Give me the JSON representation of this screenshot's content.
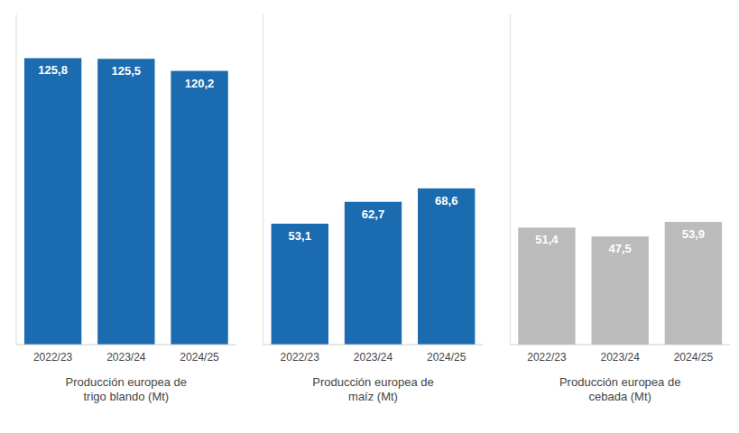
{
  "chart_data": [
    {
      "type": "bar",
      "xlabel": "Producción europea de\ntrigo blando (Mt)",
      "categories": [
        "2022/23",
        "2023/24",
        "2024/25"
      ],
      "values": [
        125.8,
        125.5,
        120.2
      ],
      "value_labels": [
        "125,8",
        "125,5",
        "120,2"
      ],
      "color": "#1B6BB0",
      "ylim": [
        0,
        145
      ],
      "data_labels": true,
      "tick_labels": "x",
      "grid": false
    },
    {
      "type": "bar",
      "xlabel": "Producción europea de\nmaíz (Mt)",
      "categories": [
        "2022/23",
        "2023/24",
        "2024/25"
      ],
      "values": [
        53.1,
        62.7,
        68.6
      ],
      "value_labels": [
        "53,1",
        "62,7",
        "68,6"
      ],
      "color": "#1B6BB0",
      "ylim": [
        0,
        145
      ],
      "data_labels": true,
      "tick_labels": "x",
      "grid": false
    },
    {
      "type": "bar",
      "xlabel": "Producción europea de\ncebada (Mt)",
      "categories": [
        "2022/23",
        "2023/24",
        "2024/25"
      ],
      "values": [
        51.4,
        47.5,
        53.9
      ],
      "value_labels": [
        "51,4",
        "47,5",
        "53,9"
      ],
      "color": "#BBBBBB",
      "ylim": [
        0,
        145
      ],
      "data_labels": true,
      "tick_labels": "x",
      "grid": false
    }
  ]
}
